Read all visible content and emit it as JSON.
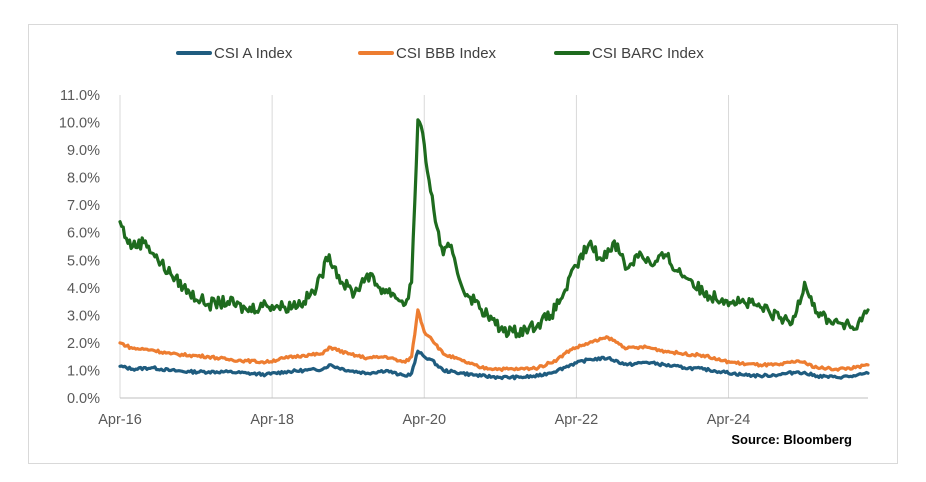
{
  "chart_data": {
    "type": "line",
    "title": "",
    "xlabel": "",
    "ylabel": "",
    "ylim": [
      0,
      11
    ],
    "y_ticks": [
      "0.0%",
      "1.0%",
      "2.0%",
      "3.0%",
      "4.0%",
      "5.0%",
      "6.0%",
      "7.0%",
      "8.0%",
      "9.0%",
      "10.0%",
      "11.0%"
    ],
    "x_ticks": [
      "Apr-16",
      "Apr-18",
      "Apr-20",
      "Apr-22",
      "Apr-24"
    ],
    "x_range": [
      "2016-04",
      "2026-02"
    ],
    "grid": "vertical",
    "legend_position": "top",
    "source": "Source: Bloomberg",
    "series": [
      {
        "name": "CSI A Index",
        "color": "#1f5c7f",
        "points": [
          [
            "2016-04",
            1.15
          ],
          [
            "2016-06",
            1.05
          ],
          [
            "2016-09",
            1.1
          ],
          [
            "2016-12",
            1.0
          ],
          [
            "2017-03",
            0.95
          ],
          [
            "2017-06",
            0.95
          ],
          [
            "2017-09",
            0.95
          ],
          [
            "2017-12",
            0.9
          ],
          [
            "2018-03",
            0.85
          ],
          [
            "2018-06",
            0.95
          ],
          [
            "2018-09",
            1.0
          ],
          [
            "2018-12",
            1.05
          ],
          [
            "2019-01",
            1.2
          ],
          [
            "2019-04",
            1.0
          ],
          [
            "2019-07",
            0.9
          ],
          [
            "2019-10",
            1.0
          ],
          [
            "2019-12",
            0.85
          ],
          [
            "2020-01",
            0.8
          ],
          [
            "2020-02",
            0.9
          ],
          [
            "2020-03",
            1.7
          ],
          [
            "2020-04",
            1.5
          ],
          [
            "2020-05",
            1.4
          ],
          [
            "2020-07",
            1.0
          ],
          [
            "2020-10",
            0.9
          ],
          [
            "2021-01",
            0.8
          ],
          [
            "2021-04",
            0.75
          ],
          [
            "2021-07",
            0.75
          ],
          [
            "2021-10",
            0.8
          ],
          [
            "2022-01",
            1.0
          ],
          [
            "2022-03",
            1.2
          ],
          [
            "2022-06",
            1.4
          ],
          [
            "2022-09",
            1.45
          ],
          [
            "2022-12",
            1.2
          ],
          [
            "2023-03",
            1.3
          ],
          [
            "2023-06",
            1.2
          ],
          [
            "2023-09",
            1.1
          ],
          [
            "2023-12",
            1.05
          ],
          [
            "2024-03",
            0.95
          ],
          [
            "2024-06",
            0.85
          ],
          [
            "2024-09",
            0.8
          ],
          [
            "2024-12",
            0.85
          ],
          [
            "2025-03",
            0.95
          ],
          [
            "2025-06",
            0.8
          ],
          [
            "2025-09",
            0.75
          ],
          [
            "2025-12",
            0.8
          ],
          [
            "2026-02",
            0.9
          ]
        ]
      },
      {
        "name": "CSI BBB Index",
        "color": "#ed7d31",
        "points": [
          [
            "2016-04",
            2.0
          ],
          [
            "2016-06",
            1.8
          ],
          [
            "2016-09",
            1.75
          ],
          [
            "2016-12",
            1.6
          ],
          [
            "2017-03",
            1.55
          ],
          [
            "2017-06",
            1.5
          ],
          [
            "2017-09",
            1.4
          ],
          [
            "2017-12",
            1.35
          ],
          [
            "2018-03",
            1.3
          ],
          [
            "2018-06",
            1.45
          ],
          [
            "2018-09",
            1.55
          ],
          [
            "2018-12",
            1.6
          ],
          [
            "2019-01",
            1.85
          ],
          [
            "2019-04",
            1.6
          ],
          [
            "2019-07",
            1.45
          ],
          [
            "2019-10",
            1.5
          ],
          [
            "2019-12",
            1.35
          ],
          [
            "2020-01",
            1.3
          ],
          [
            "2020-02",
            1.5
          ],
          [
            "2020-03",
            3.2
          ],
          [
            "2020-04",
            2.4
          ],
          [
            "2020-05",
            2.2
          ],
          [
            "2020-07",
            1.6
          ],
          [
            "2020-10",
            1.35
          ],
          [
            "2021-01",
            1.1
          ],
          [
            "2021-04",
            1.05
          ],
          [
            "2021-07",
            1.05
          ],
          [
            "2021-10",
            1.1
          ],
          [
            "2022-01",
            1.4
          ],
          [
            "2022-03",
            1.75
          ],
          [
            "2022-06",
            2.0
          ],
          [
            "2022-09",
            2.2
          ],
          [
            "2022-12",
            1.8
          ],
          [
            "2023-03",
            1.85
          ],
          [
            "2023-06",
            1.7
          ],
          [
            "2023-09",
            1.6
          ],
          [
            "2023-12",
            1.55
          ],
          [
            "2024-03",
            1.35
          ],
          [
            "2024-06",
            1.25
          ],
          [
            "2024-09",
            1.2
          ],
          [
            "2024-12",
            1.2
          ],
          [
            "2025-03",
            1.35
          ],
          [
            "2025-06",
            1.1
          ],
          [
            "2025-09",
            1.05
          ],
          [
            "2025-12",
            1.1
          ],
          [
            "2026-02",
            1.2
          ]
        ]
      },
      {
        "name": "CSI BARC Index",
        "color": "#1e6b1e",
        "points": [
          [
            "2016-04",
            6.4
          ],
          [
            "2016-05",
            5.8
          ],
          [
            "2016-06",
            5.5
          ],
          [
            "2016-08",
            5.7
          ],
          [
            "2016-10",
            5.0
          ],
          [
            "2016-12",
            4.5
          ],
          [
            "2017-03",
            3.8
          ],
          [
            "2017-06",
            3.4
          ],
          [
            "2017-09",
            3.5
          ],
          [
            "2017-12",
            3.2
          ],
          [
            "2018-03",
            3.4
          ],
          [
            "2018-06",
            3.3
          ],
          [
            "2018-09",
            3.5
          ],
          [
            "2018-11",
            4.0
          ],
          [
            "2019-01",
            5.2
          ],
          [
            "2019-03",
            4.2
          ],
          [
            "2019-05",
            3.8
          ],
          [
            "2019-07",
            4.5
          ],
          [
            "2019-09",
            4.0
          ],
          [
            "2019-11",
            3.8
          ],
          [
            "2020-01",
            3.4
          ],
          [
            "2020-02",
            4.2
          ],
          [
            "2020-03",
            10.1
          ],
          [
            "2020-04",
            9.2
          ],
          [
            "2020-05",
            7.5
          ],
          [
            "2020-06",
            6.2
          ],
          [
            "2020-07",
            5.2
          ],
          [
            "2020-08",
            5.5
          ],
          [
            "2020-09",
            4.8
          ],
          [
            "2020-10",
            4.0
          ],
          [
            "2020-12",
            3.5
          ],
          [
            "2021-02",
            3.0
          ],
          [
            "2021-04",
            2.5
          ],
          [
            "2021-06",
            2.4
          ],
          [
            "2021-08",
            2.5
          ],
          [
            "2021-10",
            2.7
          ],
          [
            "2021-12",
            3.0
          ],
          [
            "2022-02",
            3.8
          ],
          [
            "2022-04",
            4.8
          ],
          [
            "2022-06",
            5.6
          ],
          [
            "2022-08",
            5.0
          ],
          [
            "2022-10",
            5.7
          ],
          [
            "2022-12",
            4.7
          ],
          [
            "2023-02",
            5.3
          ],
          [
            "2023-04",
            4.8
          ],
          [
            "2023-06",
            5.2
          ],
          [
            "2023-08",
            4.6
          ],
          [
            "2023-10",
            4.3
          ],
          [
            "2023-12",
            3.8
          ],
          [
            "2024-03",
            3.6
          ],
          [
            "2024-06",
            3.5
          ],
          [
            "2024-09",
            3.3
          ],
          [
            "2024-12",
            2.9
          ],
          [
            "2025-02",
            2.7
          ],
          [
            "2025-04",
            4.2
          ],
          [
            "2025-06",
            3.1
          ],
          [
            "2025-08",
            2.8
          ],
          [
            "2025-10",
            2.7
          ],
          [
            "2025-12",
            2.5
          ],
          [
            "2026-01",
            2.8
          ],
          [
            "2026-02",
            3.2
          ]
        ]
      }
    ]
  }
}
